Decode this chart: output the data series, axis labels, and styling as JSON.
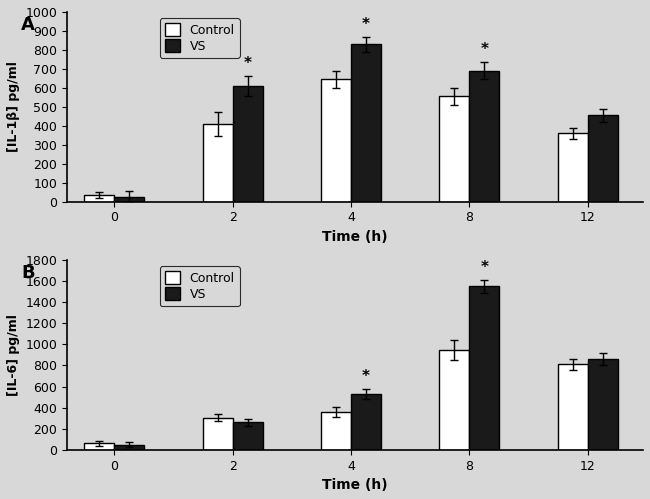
{
  "panel_A": {
    "title_label": "A",
    "ylabel": "[IL-1β] pg/ml",
    "xlabel": "Time (h)",
    "ylim": [
      0,
      1000
    ],
    "yticks": [
      0,
      100,
      200,
      300,
      400,
      500,
      600,
      700,
      800,
      900,
      1000
    ],
    "time_points": [
      0,
      2,
      4,
      8,
      12
    ],
    "control_values": [
      35,
      410,
      645,
      555,
      360
    ],
    "vs_values": [
      25,
      610,
      830,
      690,
      455
    ],
    "control_errors": [
      15,
      65,
      45,
      45,
      30
    ],
    "vs_errors": [
      30,
      55,
      40,
      45,
      35
    ],
    "significant_vs": [
      false,
      true,
      true,
      true,
      false
    ]
  },
  "panel_B": {
    "title_label": "B",
    "ylabel": "[IL-6] pg/ml",
    "xlabel": "Time (h)",
    "ylim": [
      0,
      1800
    ],
    "yticks": [
      0,
      200,
      400,
      600,
      800,
      1000,
      1200,
      1400,
      1600,
      1800
    ],
    "time_points": [
      0,
      2,
      4,
      8,
      12
    ],
    "control_values": [
      60,
      305,
      360,
      950,
      810
    ],
    "vs_values": [
      50,
      260,
      530,
      1550,
      860
    ],
    "control_errors": [
      20,
      30,
      45,
      95,
      55
    ],
    "vs_errors": [
      20,
      30,
      45,
      65,
      60
    ],
    "significant_vs": [
      false,
      false,
      true,
      true,
      false
    ]
  },
  "bar_width": 0.38,
  "control_color": "#ffffff",
  "vs_color": "#1a1a1a",
  "edge_color": "#000000",
  "legend_labels": [
    "Control",
    "VS"
  ],
  "figure_bg": "#d8d8d8",
  "axes_bg": "#d8d8d8",
  "fontsize": 9,
  "label_fontsize": 10,
  "tick_fontsize": 9,
  "x_positions": [
    0.5,
    2.0,
    3.5,
    5.0,
    6.5
  ]
}
